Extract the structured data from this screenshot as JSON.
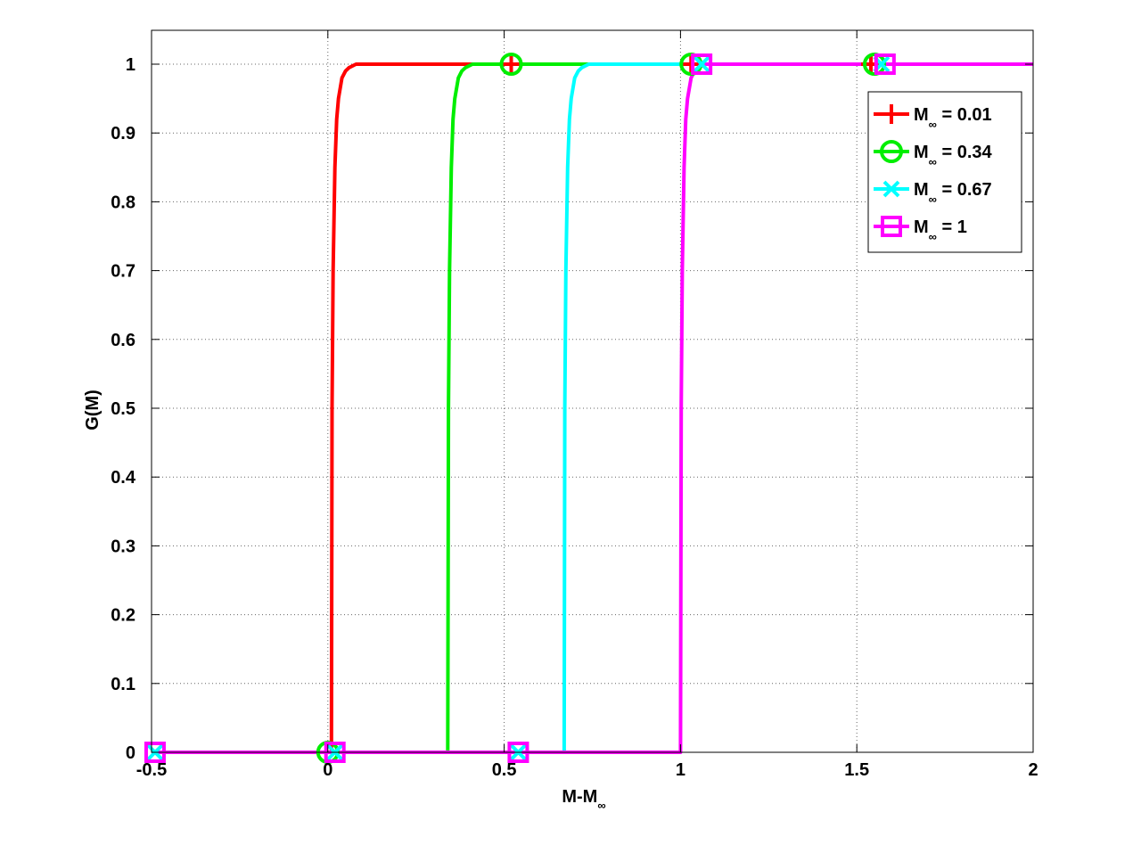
{
  "chart_data": {
    "type": "line",
    "title": "",
    "xlabel": "M-M",
    "xlabel_subscript": "∞",
    "ylabel": "G(M)",
    "xlim": [
      -0.5,
      2
    ],
    "ylim": [
      0,
      1
    ],
    "xticks": [
      -0.5,
      0,
      0.5,
      1,
      1.5,
      2
    ],
    "xtick_labels": [
      "-0.5",
      "0",
      "0.5",
      "1",
      "1.5",
      "2"
    ],
    "yticks": [
      0.1,
      0.2,
      0.3,
      0.4,
      0.5,
      0.6,
      0.7,
      0.8,
      0.9,
      1
    ],
    "ytick_labels": [
      "0.1",
      "0.2",
      "0.3",
      "0.4",
      "0.5",
      "0.6",
      "0.7",
      "0.8",
      "0.9",
      "1"
    ],
    "ytick_zero_label": "0",
    "grid": true,
    "legend_position": "top-right",
    "series": [
      {
        "name": "M∞ = 0.01",
        "legend_main": "M",
        "legend_sub": "∞",
        "legend_rest": " = 0.01",
        "color": "#ff0000",
        "marker": "plus",
        "x": [
          -0.5,
          0.01,
          0.012,
          0.015,
          0.02,
          0.025,
          0.03,
          0.04,
          0.05,
          0.06,
          0.08,
          0.1,
          2
        ],
        "y": [
          0,
          0,
          0.5,
          0.7,
          0.85,
          0.92,
          0.95,
          0.98,
          0.99,
          0.995,
          1,
          1,
          1
        ],
        "markers_x": [
          0.52,
          1.03,
          1.54
        ],
        "markers_y": [
          1,
          1,
          1
        ]
      },
      {
        "name": "M∞ = 0.34",
        "legend_main": "M",
        "legend_sub": "∞",
        "legend_rest": " = 0.34",
        "color": "#00ee00",
        "marker": "circle",
        "x": [
          -0.5,
          0.34,
          0.342,
          0.345,
          0.35,
          0.355,
          0.36,
          0.37,
          0.38,
          0.39,
          0.41,
          0.43,
          2
        ],
        "y": [
          0,
          0,
          0.5,
          0.7,
          0.85,
          0.92,
          0.95,
          0.98,
          0.99,
          0.995,
          1,
          1,
          1
        ],
        "markers_x": [
          0,
          0.52,
          1.03,
          1.55
        ],
        "markers_y": [
          0,
          1,
          1,
          1
        ]
      },
      {
        "name": "M∞ = 0.67",
        "legend_main": "M",
        "legend_sub": "∞",
        "legend_rest": " = 0.67",
        "color": "#00ffff",
        "marker": "x",
        "x": [
          -0.5,
          0.67,
          0.672,
          0.675,
          0.68,
          0.685,
          0.69,
          0.7,
          0.71,
          0.72,
          0.74,
          0.76,
          2
        ],
        "y": [
          0,
          0,
          0.5,
          0.7,
          0.85,
          0.92,
          0.95,
          0.98,
          0.99,
          0.995,
          1,
          1,
          1
        ],
        "markers_x": [
          -0.49,
          0.02,
          0.54,
          1.06,
          1.57
        ],
        "markers_y": [
          0,
          0,
          0,
          1,
          1
        ]
      },
      {
        "name": "M∞ = 1",
        "legend_main": "M",
        "legend_sub": "∞",
        "legend_rest": " = 1",
        "color": "#ff00ff",
        "marker": "square",
        "x": [
          -0.5,
          1.0,
          1.002,
          1.005,
          1.01,
          1.015,
          1.02,
          1.03,
          1.04,
          1.05,
          1.07,
          1.09,
          2
        ],
        "y": [
          0,
          0,
          0.5,
          0.7,
          0.85,
          0.92,
          0.95,
          0.98,
          0.99,
          0.995,
          1,
          1,
          1
        ],
        "markers_x": [
          -0.49,
          0.02,
          0.54,
          1.06,
          1.58
        ],
        "markers_y": [
          0,
          0,
          0,
          1,
          1
        ]
      }
    ]
  }
}
